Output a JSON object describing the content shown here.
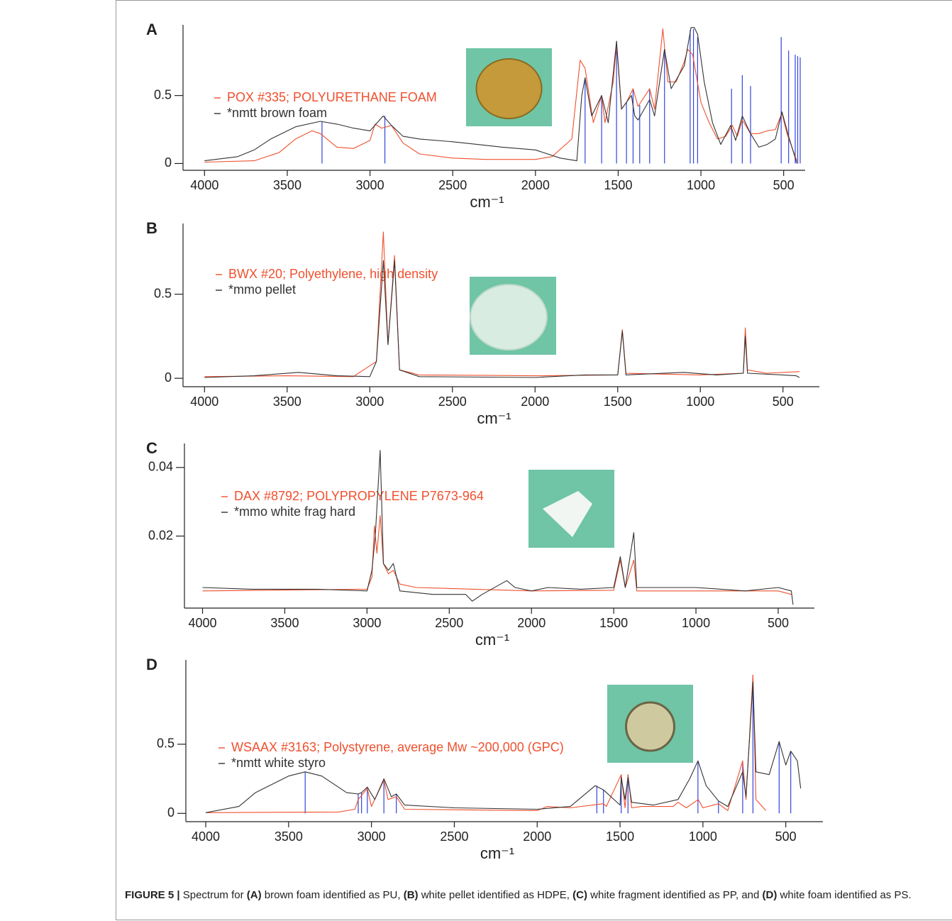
{
  "chart_data": [
    {
      "type": "line",
      "panel": "A",
      "x_label": "cm⁻¹",
      "xlim": [
        4130,
        370
      ],
      "xticks": [
        4000,
        3500,
        3000,
        2500,
        2000,
        1500,
        1000,
        500
      ],
      "ylim": [
        -0.05,
        1.02
      ],
      "yticks": [
        0,
        0.5
      ],
      "series": [
        {
          "name": "POX #335; POLYURETHANE FOAM",
          "color": "#f0502e",
          "x": [
            4000,
            3700,
            3550,
            3450,
            3350,
            3300,
            3200,
            3100,
            3000,
            2970,
            2930,
            2870,
            2800,
            2700,
            2500,
            2300,
            2000,
            1900,
            1780,
            1730,
            1700,
            1650,
            1600,
            1580,
            1530,
            1510,
            1480,
            1450,
            1410,
            1380,
            1310,
            1280,
            1230,
            1200,
            1150,
            1100,
            1080,
            1050,
            1000,
            950,
            900,
            850,
            810,
            780,
            750,
            700,
            650,
            600,
            550,
            510,
            480,
            420
          ],
          "values": [
            0.01,
            0.02,
            0.08,
            0.18,
            0.24,
            0.22,
            0.12,
            0.11,
            0.17,
            0.29,
            0.26,
            0.28,
            0.15,
            0.07,
            0.04,
            0.03,
            0.03,
            0.05,
            0.18,
            0.76,
            0.7,
            0.3,
            0.5,
            0.3,
            0.6,
            0.88,
            0.4,
            0.45,
            0.55,
            0.42,
            0.55,
            0.4,
            0.99,
            0.6,
            0.6,
            0.75,
            0.84,
            0.8,
            0.45,
            0.3,
            0.18,
            0.2,
            0.28,
            0.2,
            0.32,
            0.22,
            0.22,
            0.24,
            0.25,
            0.37,
            0.22,
            0.02
          ]
        },
        {
          "name": "*nmtt brown foam",
          "color": "#333333",
          "x": [
            4000,
            3800,
            3700,
            3600,
            3450,
            3300,
            3200,
            3100,
            3000,
            2920,
            2870,
            2800,
            2700,
            2500,
            2350,
            2200,
            2000,
            1850,
            1750,
            1720,
            1700,
            1660,
            1600,
            1560,
            1510,
            1480,
            1420,
            1400,
            1380,
            1310,
            1280,
            1220,
            1180,
            1100,
            1060,
            1040,
            1020,
            980,
            930,
            880,
            820,
            790,
            750,
            700,
            650,
            600,
            550,
            510,
            470,
            420
          ],
          "values": [
            0.02,
            0.05,
            0.1,
            0.18,
            0.27,
            0.31,
            0.29,
            0.26,
            0.24,
            0.35,
            0.28,
            0.2,
            0.18,
            0.16,
            0.14,
            0.12,
            0.1,
            0.04,
            0.02,
            0.5,
            0.63,
            0.35,
            0.5,
            0.3,
            0.9,
            0.4,
            0.5,
            0.35,
            0.32,
            0.47,
            0.35,
            0.84,
            0.55,
            0.72,
            1.0,
            1.0,
            0.95,
            0.6,
            0.3,
            0.14,
            0.28,
            0.17,
            0.35,
            0.22,
            0.12,
            0.14,
            0.18,
            0.38,
            0.2,
            0.0
          ]
        }
      ],
      "peaks": {
        "color": "#3344dd",
        "x": [
          3290,
          2910,
          1700,
          1600,
          1510,
          1450,
          1410,
          1370,
          1310,
          1220,
          1065,
          1045,
          1020,
          815,
          750,
          700,
          515,
          470,
          430,
          415,
          400
        ],
        "values": [
          0.31,
          0.35,
          0.63,
          0.5,
          0.9,
          0.45,
          0.55,
          0.43,
          0.55,
          0.84,
          0.98,
          0.99,
          0.93,
          0.55,
          0.65,
          0.57,
          0.93,
          0.83,
          0.8,
          0.79,
          0.78
        ]
      }
    },
    {
      "type": "line",
      "panel": "B",
      "x_label": "cm⁻¹",
      "xlim": [
        4130,
        280
      ],
      "xticks": [
        4000,
        3500,
        3000,
        2500,
        2000,
        1500,
        1000,
        500
      ],
      "ylim": [
        -0.05,
        0.92
      ],
      "yticks": [
        0,
        0.5
      ],
      "series": [
        {
          "name": "BWX #20; Polyethylene, high density",
          "color": "#f0502e",
          "x": [
            4000,
            3500,
            3100,
            2960,
            2918,
            2890,
            2850,
            2820,
            2700,
            2000,
            1500,
            1472,
            1450,
            1000,
            740,
            728,
            715,
            600,
            400
          ],
          "values": [
            0.01,
            0.015,
            0.01,
            0.1,
            0.87,
            0.2,
            0.73,
            0.05,
            0.02,
            0.015,
            0.02,
            0.29,
            0.03,
            0.02,
            0.03,
            0.3,
            0.05,
            0.03,
            0.04
          ]
        },
        {
          "name": "*mmo pellet",
          "color": "#333333",
          "x": [
            4000,
            3700,
            3430,
            3200,
            3000,
            2960,
            2918,
            2890,
            2850,
            2820,
            2700,
            2000,
            1700,
            1500,
            1472,
            1450,
            1100,
            900,
            740,
            728,
            715,
            500,
            420,
            400
          ],
          "values": [
            0.005,
            0.015,
            0.035,
            0.015,
            0.01,
            0.1,
            0.7,
            0.2,
            0.7,
            0.05,
            0.01,
            0.005,
            0.02,
            0.02,
            0.28,
            0.02,
            0.035,
            0.02,
            0.03,
            0.25,
            0.03,
            0.02,
            0.015,
            0.005
          ]
        }
      ]
    },
    {
      "type": "line",
      "panel": "C",
      "x_label": "cm⁻¹",
      "xlim": [
        4110,
        280
      ],
      "xticks": [
        4000,
        3500,
        3000,
        2500,
        2000,
        1500,
        1000,
        500
      ],
      "ylim": [
        -0.001,
        0.047
      ],
      "yticks": [
        0.02,
        0.04
      ],
      "series": [
        {
          "name": "DAX #8792; POLYPROPYLENE P7673-964",
          "color": "#f0502e",
          "x": [
            4000,
            3000,
            2970,
            2955,
            2940,
            2920,
            2900,
            2870,
            2840,
            2800,
            2700,
            2000,
            1500,
            1460,
            1430,
            1378,
            1360,
            1000,
            500,
            420
          ],
          "values": [
            0.004,
            0.0045,
            0.008,
            0.023,
            0.015,
            0.026,
            0.012,
            0.009,
            0.01,
            0.006,
            0.005,
            0.004,
            0.0042,
            0.013,
            0.005,
            0.013,
            0.004,
            0.004,
            0.004,
            0.003
          ]
        },
        {
          "name": "*mmo white frag hard",
          "color": "#333333",
          "x": [
            4000,
            3700,
            3300,
            3000,
            2970,
            2950,
            2920,
            2900,
            2870,
            2840,
            2800,
            2600,
            2400,
            2360,
            2300,
            2150,
            2100,
            2000,
            1900,
            1700,
            1500,
            1460,
            1430,
            1378,
            1360,
            1000,
            700,
            500,
            420,
            410
          ],
          "values": [
            0.005,
            0.0045,
            0.0045,
            0.004,
            0.01,
            0.02,
            0.045,
            0.012,
            0.01,
            0.012,
            0.004,
            0.003,
            0.003,
            0.001,
            0.003,
            0.007,
            0.005,
            0.004,
            0.005,
            0.0045,
            0.005,
            0.014,
            0.005,
            0.021,
            0.005,
            0.005,
            0.004,
            0.005,
            0.004,
            0.0
          ]
        }
      ]
    },
    {
      "type": "line",
      "panel": "D",
      "x_label": "cm⁻¹",
      "xlim": [
        4120,
        276
      ],
      "xticks": [
        4000,
        3500,
        3000,
        2500,
        2000,
        1500,
        1000,
        500
      ],
      "ylim": [
        -0.06,
        1.11
      ],
      "yticks": [
        0,
        0.5
      ],
      "series": [
        {
          "name": "WSAAX #3163; Polystyrene, average Mw ~200,000 (GPC)",
          "color": "#f0502e",
          "x": [
            4000,
            3200,
            3100,
            3080,
            3060,
            3025,
            3000,
            2925,
            2900,
            2850,
            2800,
            2000,
            1940,
            1800,
            1600,
            1583,
            1493,
            1470,
            1452,
            1430,
            1370,
            1180,
            1150,
            1100,
            1028,
            1000,
            906,
            850,
            760,
            740,
            698,
            680,
            620
          ],
          "values": [
            0.005,
            0.01,
            0.03,
            0.1,
            0.13,
            0.18,
            0.05,
            0.24,
            0.1,
            0.12,
            0.03,
            0.02,
            0.05,
            0.04,
            0.07,
            0.05,
            0.28,
            0.04,
            0.28,
            0.04,
            0.05,
            0.05,
            0.08,
            0.04,
            0.1,
            0.04,
            0.07,
            0.02,
            0.38,
            0.1,
            1.0,
            0.1,
            0.02
          ]
        },
        {
          "name": "*nmtt white styro",
          "color": "#333333",
          "x": [
            4000,
            3800,
            3700,
            3500,
            3400,
            3300,
            3150,
            3080,
            3060,
            3025,
            2980,
            2925,
            2880,
            2850,
            2800,
            2500,
            2000,
            1800,
            1700,
            1650,
            1600,
            1500,
            1493,
            1470,
            1452,
            1430,
            1300,
            1150,
            1080,
            1030,
            980,
            906,
            850,
            760,
            740,
            698,
            680,
            600,
            540,
            500,
            470,
            430,
            410
          ],
          "values": [
            0.005,
            0.05,
            0.15,
            0.27,
            0.3,
            0.27,
            0.15,
            0.14,
            0.15,
            0.19,
            0.1,
            0.25,
            0.12,
            0.14,
            0.06,
            0.04,
            0.03,
            0.05,
            0.15,
            0.2,
            0.17,
            0.06,
            0.26,
            0.1,
            0.26,
            0.08,
            0.06,
            0.1,
            0.25,
            0.38,
            0.2,
            0.09,
            0.05,
            0.3,
            0.12,
            0.95,
            0.3,
            0.28,
            0.52,
            0.35,
            0.45,
            0.38,
            0.18
          ]
        }
      ],
      "peaks": {
        "color": "#3344dd",
        "x": [
          3400,
          3080,
          3060,
          3025,
          2925,
          2850,
          1640,
          1600,
          1493,
          1452,
          1030,
          906,
          760,
          698,
          540,
          470
        ],
        "values": [
          0.3,
          0.14,
          0.15,
          0.19,
          0.25,
          0.14,
          0.2,
          0.17,
          0.28,
          0.28,
          0.38,
          0.09,
          0.38,
          1.0,
          0.52,
          0.45
        ]
      }
    }
  ],
  "caption": [
    "FIGURE 5 |",
    "Spectrum for",
    "(A)",
    "brown foam identified as PU,",
    "(B)",
    "white pellet identified as HDPE,",
    "(C)",
    "white fragment identified as PP, and",
    "(D)",
    "white foam identified as PS."
  ]
}
